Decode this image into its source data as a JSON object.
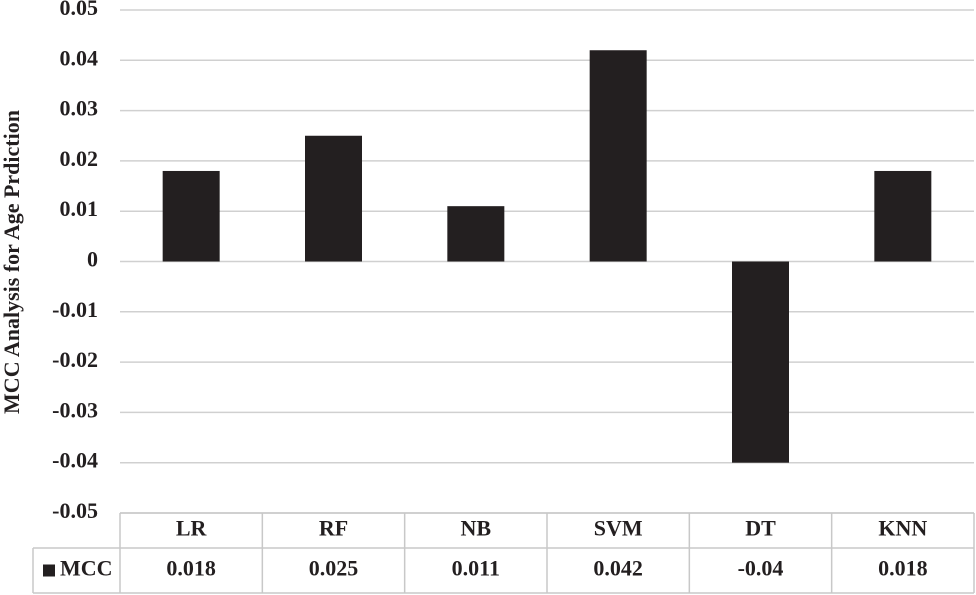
{
  "chart_data": {
    "type": "bar",
    "y_label": "MCC Analysis for Age Prdiction",
    "categories": [
      "LR",
      "RF",
      "NB",
      "SVM",
      "DT",
      "KNN"
    ],
    "series": [
      {
        "name": "MCC",
        "color": "#231f20",
        "values": [
          0.018,
          0.025,
          0.011,
          0.042,
          -0.04,
          0.018
        ]
      }
    ],
    "ylim": [
      -0.05,
      0.05
    ],
    "yticks": [
      -0.05,
      -0.04,
      -0.03,
      -0.02,
      -0.01,
      0,
      0.01,
      0.02,
      0.03,
      0.04,
      0.05
    ],
    "grid": true,
    "data_table": true
  }
}
